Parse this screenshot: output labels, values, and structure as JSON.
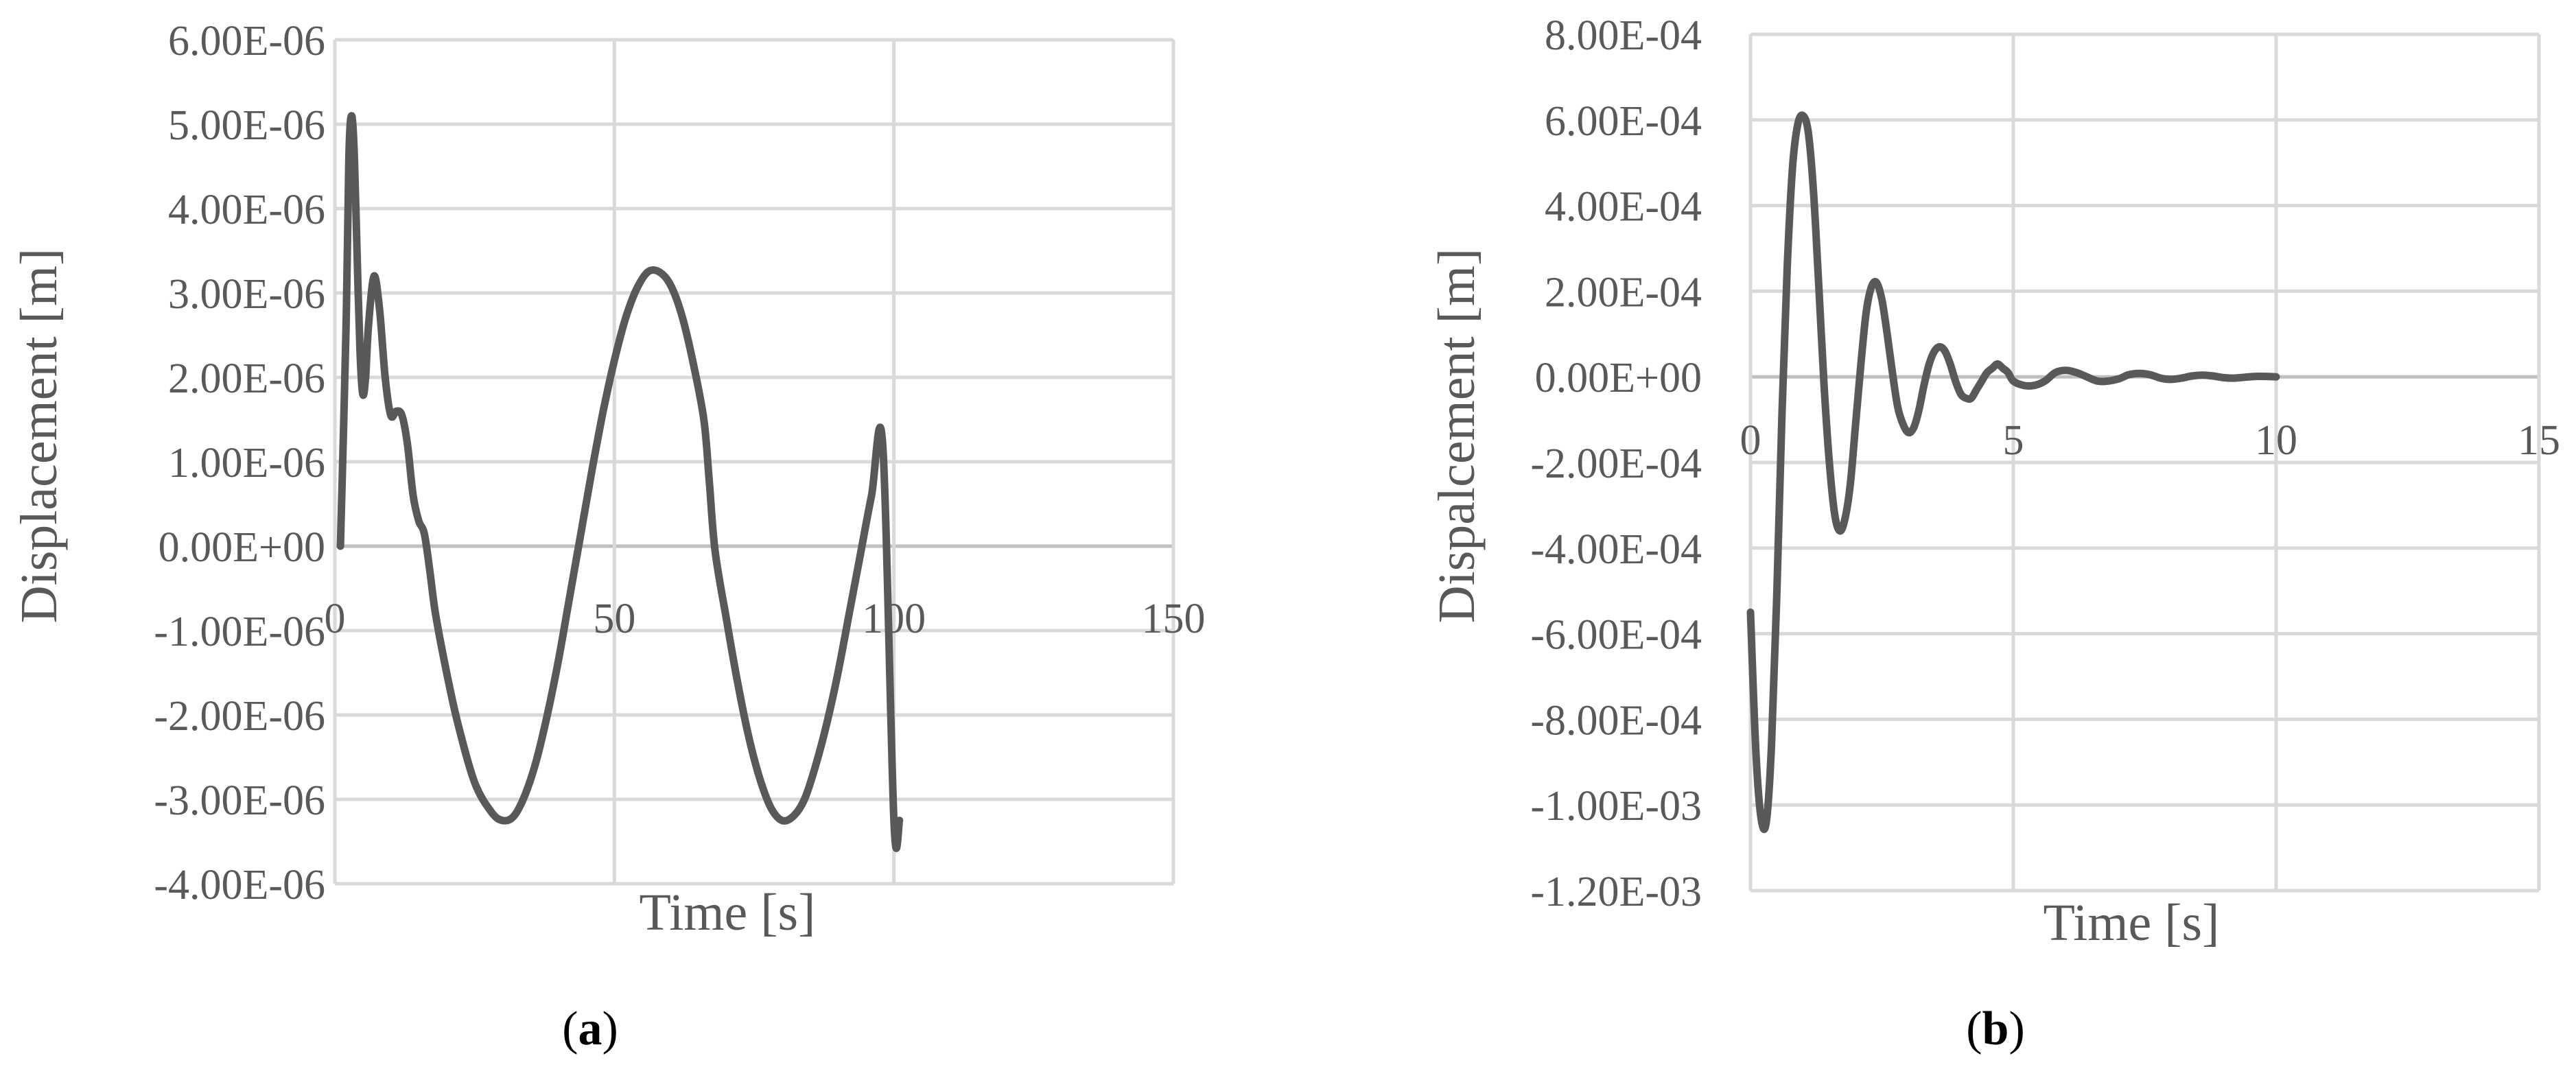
{
  "chart_data": [
    {
      "type": "line",
      "panel": "a",
      "xlabel": "Time [s]",
      "ylabel": "Displacement [m]",
      "xlim": [
        0,
        150
      ],
      "ylim": [
        -4e-06,
        6e-06
      ],
      "x_ticks": [
        "0",
        "50",
        "100",
        "150"
      ],
      "y_ticks": [
        "6.00E-06",
        "5.00E-06",
        "4.00E-06",
        "3.00E-06",
        "2.00E-06",
        "1.00E-06",
        "0.00E+00",
        "-1.00E-06",
        "-2.00E-06",
        "-3.00E-06",
        "-4.00E-06"
      ],
      "grid": true,
      "series": [
        {
          "x": [
            1,
            2,
            2.5,
            3,
            3.5,
            4,
            4.5,
            5,
            5.5,
            6,
            7,
            8,
            9,
            10,
            11,
            12,
            13,
            14,
            15,
            16,
            17,
            18,
            20,
            22,
            25,
            28,
            30,
            32,
            34,
            36,
            38,
            40,
            42,
            44,
            46,
            48,
            50,
            52,
            54,
            56,
            58,
            60,
            62,
            64,
            66,
            67,
            68,
            70,
            72,
            74,
            76,
            78,
            80,
            82,
            84,
            86,
            88,
            90,
            92,
            94,
            96,
            98,
            100,
            101
          ],
          "y": [
            0.0,
            2.6e-06,
            4.6e-06,
            5.1e-06,
            4.6e-06,
            3.4e-06,
            2.3e-06,
            1.8e-06,
            2e-06,
            2.6e-06,
            3.2e-06,
            2.8e-06,
            2e-06,
            1.55e-06,
            1.6e-06,
            1.55e-06,
            1.2e-06,
            6e-07,
            3e-07,
            1.5e-07,
            -3e-07,
            -8e-07,
            -1.5e-06,
            -2.1e-06,
            -2.8e-06,
            -3.15e-06,
            -3.25e-06,
            -3.2e-06,
            -2.95e-06,
            -2.55e-06,
            -2e-06,
            -1.35e-06,
            -6e-07,
            1.5e-07,
            9e-07,
            1.6e-06,
            2.2e-06,
            2.7e-06,
            3.05e-06,
            3.25e-06,
            3.25e-06,
            3.1e-06,
            2.75e-06,
            2.2e-06,
            1.5e-06,
            7.5e-07,
            -5e-08,
            -8.5e-07,
            -1.6e-06,
            -2.25e-06,
            -2.75e-06,
            -3.1e-06,
            -3.25e-06,
            -3.2e-06,
            -3e-06,
            -2.6e-06,
            -2.1e-06,
            -1.5e-06,
            -8e-07,
            -1e-07,
            6e-07,
            1.2e-06,
            -3.25e-06,
            -3.25e-06
          ]
        }
      ]
    },
    {
      "type": "line",
      "panel": "b",
      "xlabel": "Time [s]",
      "ylabel": "Dispalcement [m]",
      "xlim": [
        0,
        15
      ],
      "ylim": [
        -0.0012,
        0.0008
      ],
      "x_ticks": [
        "0",
        "5",
        "10",
        "15"
      ],
      "y_ticks": [
        "8.00E-04",
        "6.00E-04",
        "4.00E-04",
        "2.00E-04",
        "0.00E+00",
        "-2.00E-04",
        "-4.00E-04",
        "-6.00E-04",
        "-8.00E-04",
        "-1.00E-03",
        "-1.20E-03"
      ],
      "grid": true,
      "series": [
        {
          "x": [
            0.0,
            0.1,
            0.2,
            0.3,
            0.4,
            0.5,
            0.6,
            0.7,
            0.8,
            0.9,
            1.0,
            1.1,
            1.2,
            1.3,
            1.4,
            1.5,
            1.6,
            1.7,
            1.8,
            1.9,
            2.0,
            2.1,
            2.2,
            2.3,
            2.4,
            2.5,
            2.6,
            2.7,
            2.8,
            2.9,
            3.0,
            3.1,
            3.2,
            3.3,
            3.4,
            3.5,
            3.6,
            3.7,
            3.8,
            3.9,
            4.0,
            4.1,
            4.2,
            4.3,
            4.4,
            4.5,
            4.6,
            4.7,
            4.8,
            4.9,
            5.0,
            5.2,
            5.4,
            5.6,
            5.8,
            6.0,
            6.2,
            6.4,
            6.6,
            6.8,
            7.0,
            7.2,
            7.4,
            7.6,
            7.8,
            8.0,
            8.2,
            8.4,
            8.6,
            8.8,
            9.0,
            9.2,
            9.4,
            9.6,
            9.8,
            10.0
          ],
          "y": [
            -0.00055,
            -0.00087,
            -0.00103,
            -0.00104,
            -0.00086,
            -0.00051,
            -8e-05,
            0.00026,
            0.00049,
            0.00059,
            0.00061,
            0.00057,
            0.00043,
            0.00021,
            -2e-05,
            -0.0002,
            -0.00032,
            -0.00036,
            -0.00033,
            -0.00025,
            -0.00011,
            3e-05,
            0.00015,
            0.00021,
            0.00022,
            0.00018,
            0.0001,
            1e-05,
            -7e-05,
            -0.00011,
            -0.00013,
            -0.00012,
            -8e-05,
            -2e-05,
            3e-05,
            6e-05,
            7e-05,
            6e-05,
            3e-05,
            -1e-05,
            -4e-05,
            -5e-05,
            -5e-05,
            -3e-05,
            -1e-05,
            1e-05,
            2e-05,
            3e-05,
            2e-05,
            1e-05,
            -1e-05,
            -2e-05,
            -2e-05,
            -1e-05,
            1e-05,
            1.5e-05,
            1e-05,
            0.0,
            -1e-05,
            -1e-05,
            -5e-06,
            5e-06,
            8e-06,
            5e-06,
            -3e-06,
            -6e-06,
            -3e-06,
            2e-06,
            4e-06,
            2e-06,
            -2e-06,
            -3e-06,
            -1e-06,
            1e-06,
            1e-06,
            0.0
          ]
        }
      ]
    }
  ],
  "panel_labels": {
    "a": "a",
    "b": "b"
  }
}
